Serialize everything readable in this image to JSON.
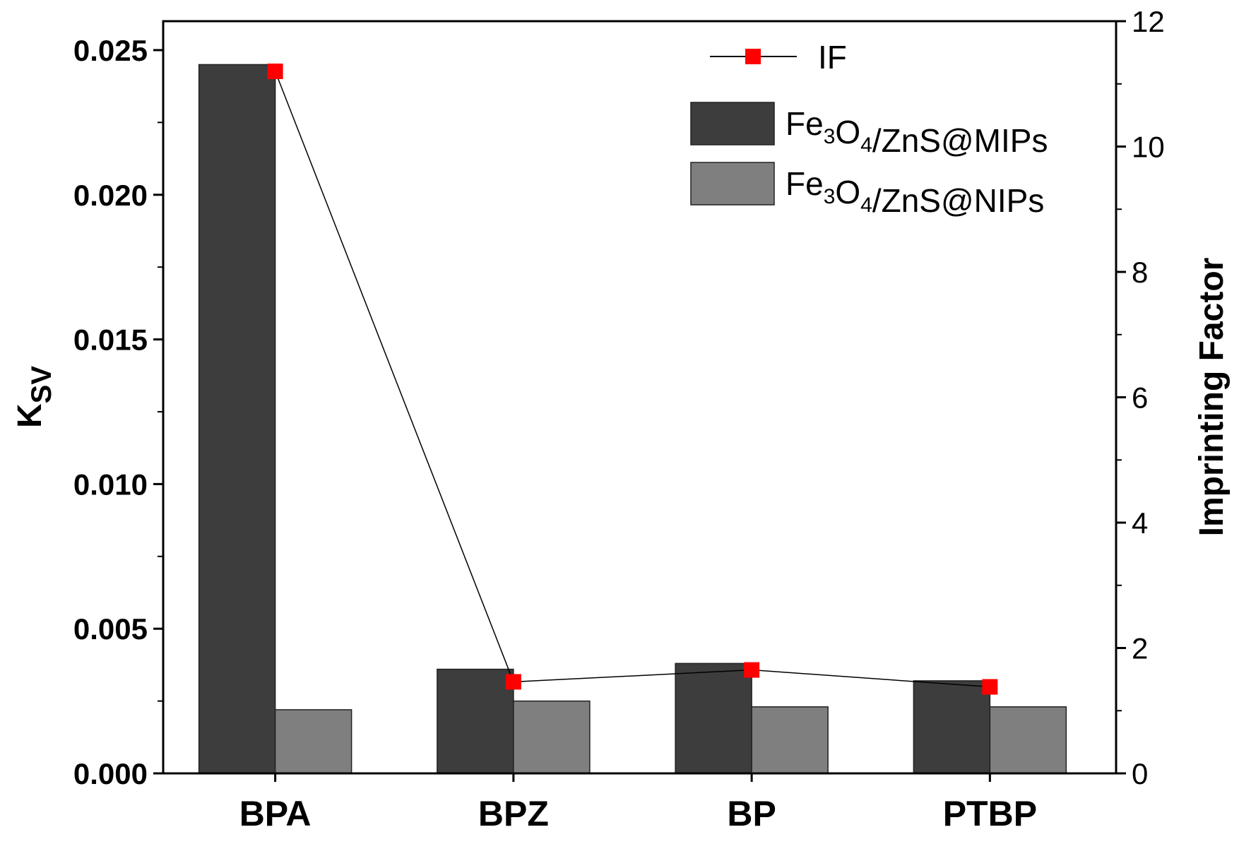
{
  "chart_data": {
    "type": "bar",
    "categories": [
      "BPA",
      "BPZ",
      "BP",
      "PTBP"
    ],
    "series": [
      {
        "name": "Fe3O4/ZnS@MIPs",
        "label_parts": [
          {
            "t": "Fe",
            "sub": false
          },
          {
            "t": "3",
            "sub": true
          },
          {
            "t": "O",
            "sub": false
          },
          {
            "t": "4",
            "sub": true
          },
          {
            "t": "/ZnS@MIPs",
            "sub": false
          }
        ],
        "axis": "left",
        "kind": "bar",
        "color": "#3d3d3d",
        "values": [
          0.0245,
          0.0036,
          0.0038,
          0.0032
        ]
      },
      {
        "name": "Fe3O4/ZnS@NIPs",
        "label_parts": [
          {
            "t": "Fe",
            "sub": false
          },
          {
            "t": "3",
            "sub": true
          },
          {
            "t": "O",
            "sub": false
          },
          {
            "t": "4",
            "sub": true
          },
          {
            "t": "/ZnS@NIPs",
            "sub": false
          }
        ],
        "axis": "left",
        "kind": "bar",
        "color": "#7f7f7f",
        "values": [
          0.0022,
          0.0025,
          0.0023,
          0.0023
        ]
      },
      {
        "name": "IF",
        "axis": "right",
        "kind": "line",
        "color": "#000000",
        "marker_color": "#ff0000",
        "values": [
          11.2,
          1.46,
          1.65,
          1.38
        ]
      }
    ],
    "ylabel": "K",
    "ylabel_sub": "SV",
    "y2label": "Imprinting Factor",
    "xlabel": "",
    "ylim": [
      0,
      0.026
    ],
    "yticks": [
      "0.000",
      "0.005",
      "0.010",
      "0.015",
      "0.020",
      "0.025"
    ],
    "y2lim": [
      0,
      12
    ],
    "y2ticks": [
      "0",
      "2",
      "4",
      "6",
      "8",
      "10",
      "12"
    ],
    "legend_position": "top-right",
    "grid": false
  }
}
